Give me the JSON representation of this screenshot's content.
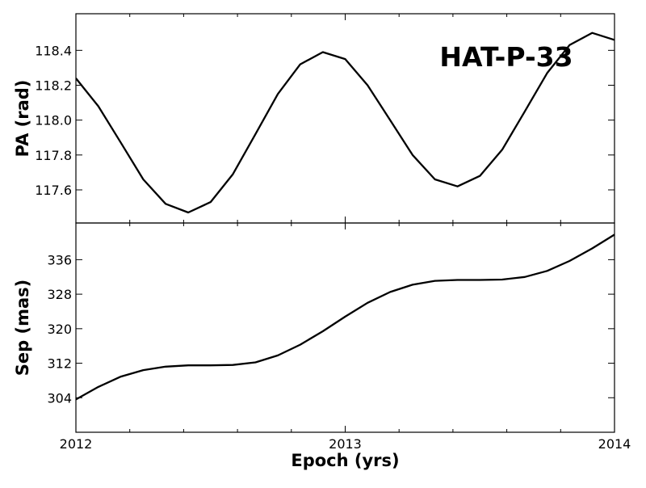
{
  "chart_data": [
    {
      "type": "line",
      "title": "HAT-P-33",
      "xlabel": "",
      "ylabel": "PA (rad)",
      "xlim": [
        2012,
        2014
      ],
      "ylim": [
        117.41,
        118.61
      ],
      "yticks": [
        117.6,
        117.8,
        118.0,
        118.2,
        118.4
      ],
      "ytick_labels": [
        "117.6",
        "117.8",
        "118.0",
        "118.2",
        "118.4"
      ],
      "xtick_labels": [],
      "grid": false,
      "line_color": "#000000",
      "series": [
        {
          "x": [
            2012.0,
            2012.083,
            2012.167,
            2012.25,
            2012.333,
            2012.417,
            2012.5,
            2012.583,
            2012.667,
            2012.75,
            2012.833,
            2012.917,
            2013.0,
            2013.083,
            2013.167,
            2013.25,
            2013.333,
            2013.417,
            2013.5,
            2013.583,
            2013.667,
            2013.75,
            2013.833,
            2013.917,
            2014.0
          ],
          "y": [
            118.24,
            118.08,
            117.87,
            117.66,
            117.52,
            117.47,
            117.53,
            117.69,
            117.92,
            118.15,
            118.32,
            118.39,
            118.35,
            118.2,
            118.0,
            117.8,
            117.66,
            117.62,
            117.68,
            117.83,
            118.05,
            118.27,
            118.43,
            118.5,
            118.46
          ]
        }
      ]
    },
    {
      "type": "line",
      "xlabel": "Epoch (yrs)",
      "ylabel": "Sep (mas)",
      "xlim": [
        2012,
        2014
      ],
      "ylim": [
        296,
        344.5
      ],
      "yticks": [
        304,
        312,
        320,
        328,
        336
      ],
      "ytick_labels": [
        "304",
        "312",
        "320",
        "328",
        "336"
      ],
      "xticks": [
        2012,
        2013,
        2014
      ],
      "xtick_labels": [
        "2012",
        "2013",
        "2014"
      ],
      "grid": false,
      "line_color": "#000000",
      "series": [
        {
          "x": [
            2012.0,
            2012.083,
            2012.167,
            2012.25,
            2012.333,
            2012.417,
            2012.5,
            2012.583,
            2012.667,
            2012.75,
            2012.833,
            2012.917,
            2013.0,
            2013.083,
            2013.167,
            2013.25,
            2013.333,
            2013.417,
            2013.5,
            2013.583,
            2013.667,
            2013.75,
            2013.833,
            2013.917,
            2014.0
          ],
          "y": [
            303.6,
            306.5,
            308.9,
            310.4,
            311.2,
            311.5,
            311.5,
            311.6,
            312.2,
            313.8,
            316.3,
            319.4,
            322.8,
            326.0,
            328.5,
            330.2,
            331.1,
            331.3,
            331.3,
            331.4,
            332.0,
            333.4,
            335.7,
            338.6,
            341.8
          ]
        }
      ]
    }
  ]
}
